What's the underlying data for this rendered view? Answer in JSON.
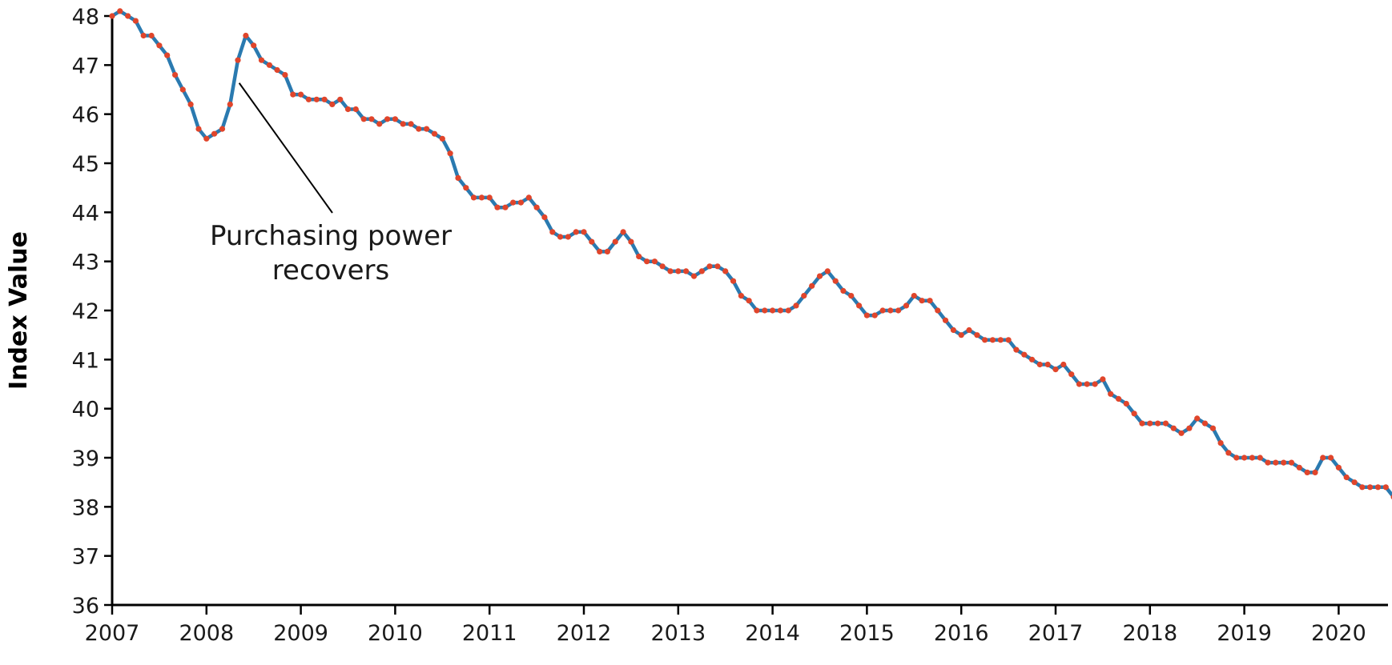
{
  "chart_data": {
    "type": "line",
    "ylabel": "Index Value",
    "xlabel": "",
    "ylim": [
      36,
      48
    ],
    "xlim": [
      2007,
      2020.6
    ],
    "y_ticks": [
      "36",
      "37",
      "38",
      "39",
      "40",
      "41",
      "42",
      "43",
      "44",
      "45",
      "46",
      "47",
      "48"
    ],
    "x_ticks": [
      "2007",
      "2008",
      "2009",
      "2010",
      "2011",
      "2012",
      "2013",
      "2014",
      "2015",
      "2016",
      "2017",
      "2018",
      "2019",
      "2020"
    ],
    "grid": false,
    "line_color": "#2a7ab0",
    "marker_color": "#e0452b",
    "annotation": {
      "line1": "Purchasing power",
      "line2": "recovers",
      "x": 2008.33,
      "y": 46.7
    },
    "series": [
      {
        "x": [
          2007.0,
          2007.083,
          2007.167,
          2007.25,
          2007.333,
          2007.417,
          2007.5,
          2007.583,
          2007.667,
          2007.75,
          2007.833,
          2007.917,
          2008.0,
          2008.083,
          2008.167,
          2008.25,
          2008.333,
          2008.417,
          2008.5,
          2008.583,
          2008.667,
          2008.75,
          2008.833,
          2008.917,
          2009.0,
          2009.083,
          2009.167,
          2009.25,
          2009.333,
          2009.417,
          2009.5,
          2009.583,
          2009.667,
          2009.75,
          2009.833,
          2009.917,
          2010.0,
          2010.083,
          2010.167,
          2010.25,
          2010.333,
          2010.417,
          2010.5,
          2010.583,
          2010.667,
          2010.75,
          2010.833,
          2010.917,
          2011.0,
          2011.083,
          2011.167,
          2011.25,
          2011.333,
          2011.417,
          2011.5,
          2011.583,
          2011.667,
          2011.75,
          2011.833,
          2011.917,
          2012.0,
          2012.083,
          2012.167,
          2012.25,
          2012.333,
          2012.417,
          2012.5,
          2012.583,
          2012.667,
          2012.75,
          2012.833,
          2012.917,
          2013.0,
          2013.083,
          2013.167,
          2013.25,
          2013.333,
          2013.417,
          2013.5,
          2013.583,
          2013.667,
          2013.75,
          2013.833,
          2013.917,
          2014.0,
          2014.083,
          2014.167,
          2014.25,
          2014.333,
          2014.417,
          2014.5,
          2014.583,
          2014.667,
          2014.75,
          2014.833,
          2014.917,
          2015.0,
          2015.083,
          2015.167,
          2015.25,
          2015.333,
          2015.417,
          2015.5,
          2015.583,
          2015.667,
          2015.75,
          2015.833,
          2015.917,
          2016.0,
          2016.083,
          2016.167,
          2016.25,
          2016.333,
          2016.417,
          2016.5,
          2016.583,
          2016.667,
          2016.75,
          2016.833,
          2016.917,
          2017.0,
          2017.083,
          2017.167,
          2017.25,
          2017.333,
          2017.417,
          2017.5,
          2017.583,
          2017.667,
          2017.75,
          2017.833,
          2017.917,
          2018.0,
          2018.083,
          2018.167,
          2018.25,
          2018.333,
          2018.417,
          2018.5,
          2018.583,
          2018.667,
          2018.75,
          2018.833,
          2018.917,
          2019.0,
          2019.083,
          2019.167,
          2019.25,
          2019.333,
          2019.417,
          2019.5,
          2019.583,
          2019.667,
          2019.75,
          2019.833,
          2019.917,
          2020.0,
          2020.083,
          2020.167,
          2020.25,
          2020.333,
          2020.417,
          2020.5,
          2020.583
        ],
        "values": [
          48.0,
          48.1,
          48.0,
          47.9,
          47.6,
          47.6,
          47.4,
          47.2,
          46.8,
          46.5,
          46.2,
          45.7,
          45.5,
          45.6,
          45.7,
          46.2,
          47.1,
          47.6,
          47.4,
          47.1,
          47.0,
          46.9,
          46.8,
          46.4,
          46.4,
          46.3,
          46.3,
          46.3,
          46.2,
          46.3,
          46.1,
          46.1,
          45.9,
          45.9,
          45.8,
          45.9,
          45.9,
          45.8,
          45.8,
          45.7,
          45.7,
          45.6,
          45.5,
          45.2,
          44.7,
          44.5,
          44.3,
          44.3,
          44.3,
          44.1,
          44.1,
          44.2,
          44.2,
          44.3,
          44.1,
          43.9,
          43.6,
          43.5,
          43.5,
          43.6,
          43.6,
          43.4,
          43.2,
          43.2,
          43.4,
          43.6,
          43.4,
          43.1,
          43.0,
          43.0,
          42.9,
          42.8,
          42.8,
          42.8,
          42.7,
          42.8,
          42.9,
          42.9,
          42.8,
          42.6,
          42.3,
          42.2,
          42.0,
          42.0,
          42.0,
          42.0,
          42.0,
          42.1,
          42.3,
          42.5,
          42.7,
          42.8,
          42.6,
          42.4,
          42.3,
          42.1,
          41.9,
          41.9,
          42.0,
          42.0,
          42.0,
          42.1,
          42.3,
          42.2,
          42.2,
          42.0,
          41.8,
          41.6,
          41.5,
          41.6,
          41.5,
          41.4,
          41.4,
          41.4,
          41.4,
          41.2,
          41.1,
          41.0,
          40.9,
          40.9,
          40.8,
          40.9,
          40.7,
          40.5,
          40.5,
          40.5,
          40.6,
          40.3,
          40.2,
          40.1,
          39.9,
          39.7,
          39.7,
          39.7,
          39.7,
          39.6,
          39.5,
          39.6,
          39.8,
          39.7,
          39.6,
          39.3,
          39.1,
          39.0,
          39.0,
          39.0,
          39.0,
          38.9,
          38.9,
          38.9,
          38.9,
          38.8,
          38.7,
          38.7,
          39.0,
          39.0,
          38.8,
          38.6,
          38.5,
          38.4,
          38.4,
          38.4,
          38.4,
          38.2
        ]
      }
    ]
  }
}
